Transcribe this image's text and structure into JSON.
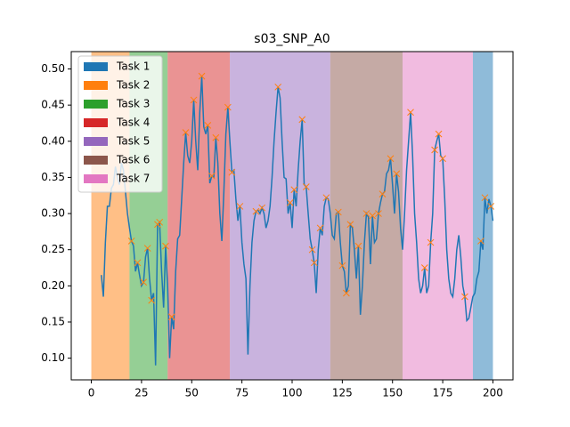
{
  "chart_data": {
    "type": "line",
    "title": "s03_SNP_A0",
    "xlim": [
      -10,
      210
    ],
    "ylim": [
      0.07,
      0.524
    ],
    "xticks": [
      0,
      25,
      50,
      75,
      100,
      125,
      150,
      175,
      200
    ],
    "yticks": [
      {
        "value": 0.1,
        "label": "0.10"
      },
      {
        "value": 0.15,
        "label": "0.15"
      },
      {
        "value": 0.2,
        "label": "0.20"
      },
      {
        "value": 0.25,
        "label": "0.25"
      },
      {
        "value": 0.3,
        "label": "0.30"
      },
      {
        "value": 0.35,
        "label": "0.35"
      },
      {
        "value": 0.4,
        "label": "0.40"
      },
      {
        "value": 0.45,
        "label": "0.45"
      },
      {
        "value": 0.5,
        "label": "0.50"
      }
    ],
    "span_alpha": 0.5,
    "spans": [
      {
        "name": "Task 1",
        "color": "#1f77b4",
        "start": 190,
        "end": 200
      },
      {
        "name": "Task 2",
        "color": "#ff7f0e",
        "start": 0,
        "end": 19
      },
      {
        "name": "Task 3",
        "color": "#2ca02c",
        "start": 19,
        "end": 38
      },
      {
        "name": "Task 4",
        "color": "#d62728",
        "start": 38,
        "end": 69
      },
      {
        "name": "Task 5",
        "color": "#9467bd",
        "start": 69,
        "end": 119
      },
      {
        "name": "Task 6",
        "color": "#8c564b",
        "start": 119,
        "end": 155
      },
      {
        "name": "Task 7",
        "color": "#e377c2",
        "start": 155,
        "end": 190
      }
    ],
    "x": [
      5,
      6,
      7,
      8,
      9,
      10,
      11,
      12,
      13,
      14,
      15,
      16,
      17,
      18,
      19,
      20,
      21,
      22,
      23,
      24,
      25,
      26,
      27,
      28,
      29,
      30,
      31,
      32,
      33,
      34,
      35,
      36,
      37,
      38,
      39,
      40,
      41,
      42,
      43,
      44,
      45,
      46,
      47,
      48,
      49,
      50,
      51,
      52,
      53,
      54,
      55,
      56,
      57,
      58,
      59,
      60,
      61,
      62,
      63,
      64,
      65,
      66,
      67,
      68,
      69,
      70,
      71,
      72,
      73,
      74,
      75,
      76,
      77,
      78,
      79,
      80,
      81,
      82,
      83,
      84,
      85,
      86,
      87,
      88,
      89,
      90,
      91,
      92,
      93,
      94,
      95,
      96,
      97,
      98,
      99,
      100,
      101,
      102,
      103,
      104,
      105,
      106,
      107,
      108,
      109,
      110,
      111,
      112,
      113,
      114,
      115,
      116,
      117,
      118,
      119,
      120,
      121,
      122,
      123,
      124,
      125,
      126,
      127,
      128,
      129,
      130,
      131,
      132,
      133,
      134,
      135,
      136,
      137,
      138,
      139,
      140,
      141,
      142,
      143,
      144,
      145,
      146,
      147,
      148,
      149,
      150,
      151,
      152,
      153,
      154,
      155,
      156,
      157,
      158,
      159,
      160,
      161,
      162,
      163,
      164,
      165,
      166,
      167,
      168,
      169,
      170,
      171,
      172,
      173,
      174,
      175,
      176,
      177,
      178,
      179,
      180,
      181,
      182,
      183,
      184,
      185,
      186,
      187,
      188,
      189,
      190,
      191,
      192,
      193,
      194,
      195,
      196,
      197,
      198,
      199,
      200
    ],
    "series": [
      {
        "color": "#1f77b4",
        "values": [
          0.215,
          0.185,
          0.26,
          0.31,
          0.31,
          0.335,
          0.34,
          0.365,
          0.35,
          0.34,
          0.37,
          0.36,
          0.33,
          0.3,
          0.28,
          0.262,
          0.255,
          0.22,
          0.232,
          0.215,
          0.2,
          0.205,
          0.24,
          0.252,
          0.21,
          0.18,
          0.19,
          0.09,
          0.285,
          0.288,
          0.22,
          0.17,
          0.255,
          0.2,
          0.1,
          0.157,
          0.14,
          0.22,
          0.265,
          0.27,
          0.32,
          0.37,
          0.412,
          0.38,
          0.37,
          0.4,
          0.457,
          0.4,
          0.36,
          0.44,
          0.49,
          0.42,
          0.41,
          0.422,
          0.342,
          0.352,
          0.35,
          0.405,
          0.37,
          0.3,
          0.262,
          0.33,
          0.41,
          0.447,
          0.4,
          0.357,
          0.36,
          0.32,
          0.29,
          0.31,
          0.26,
          0.23,
          0.21,
          0.105,
          0.2,
          0.26,
          0.29,
          0.303,
          0.305,
          0.3,
          0.308,
          0.3,
          0.28,
          0.29,
          0.31,
          0.35,
          0.4,
          0.44,
          0.475,
          0.46,
          0.4,
          0.35,
          0.348,
          0.3,
          0.315,
          0.28,
          0.333,
          0.31,
          0.36,
          0.4,
          0.43,
          0.34,
          0.337,
          0.3,
          0.265,
          0.25,
          0.232,
          0.19,
          0.25,
          0.28,
          0.27,
          0.31,
          0.322,
          0.32,
          0.3,
          0.27,
          0.265,
          0.3,
          0.302,
          0.26,
          0.228,
          0.22,
          0.19,
          0.2,
          0.285,
          0.28,
          0.25,
          0.21,
          0.255,
          0.16,
          0.2,
          0.26,
          0.3,
          0.295,
          0.23,
          0.297,
          0.26,
          0.265,
          0.3,
          0.315,
          0.327,
          0.33,
          0.355,
          0.36,
          0.376,
          0.34,
          0.3,
          0.355,
          0.33,
          0.28,
          0.25,
          0.3,
          0.36,
          0.4,
          0.44,
          0.38,
          0.3,
          0.26,
          0.21,
          0.19,
          0.2,
          0.225,
          0.19,
          0.2,
          0.26,
          0.3,
          0.388,
          0.4,
          0.41,
          0.38,
          0.376,
          0.32,
          0.25,
          0.21,
          0.19,
          0.185,
          0.21,
          0.25,
          0.27,
          0.24,
          0.2,
          0.185,
          0.152,
          0.155,
          0.17,
          0.185,
          0.19,
          0.21,
          0.22,
          0.262,
          0.25,
          0.322,
          0.3,
          0.32,
          0.31,
          0.29
        ]
      }
    ],
    "markers": {
      "color": "#ff7f0e",
      "x": [
        20,
        23,
        26,
        28,
        30,
        33,
        34,
        37,
        40,
        47,
        51,
        55,
        58,
        60,
        62,
        68,
        70,
        74,
        82,
        85,
        93,
        99,
        101,
        105,
        107,
        110,
        111,
        114,
        117,
        123,
        125,
        127,
        129,
        133,
        137,
        140,
        143,
        145,
        149,
        152,
        159,
        166,
        169,
        171,
        173,
        175,
        186,
        194,
        196,
        199
      ],
      "values": [
        0.262,
        0.232,
        0.205,
        0.252,
        0.18,
        0.285,
        0.288,
        0.255,
        0.157,
        0.412,
        0.457,
        0.49,
        0.422,
        0.352,
        0.405,
        0.447,
        0.357,
        0.31,
        0.303,
        0.308,
        0.475,
        0.315,
        0.333,
        0.43,
        0.337,
        0.25,
        0.232,
        0.28,
        0.322,
        0.302,
        0.228,
        0.19,
        0.285,
        0.255,
        0.3,
        0.297,
        0.3,
        0.327,
        0.376,
        0.355,
        0.44,
        0.225,
        0.26,
        0.388,
        0.41,
        0.376,
        0.185,
        0.262,
        0.322,
        0.31
      ]
    }
  }
}
